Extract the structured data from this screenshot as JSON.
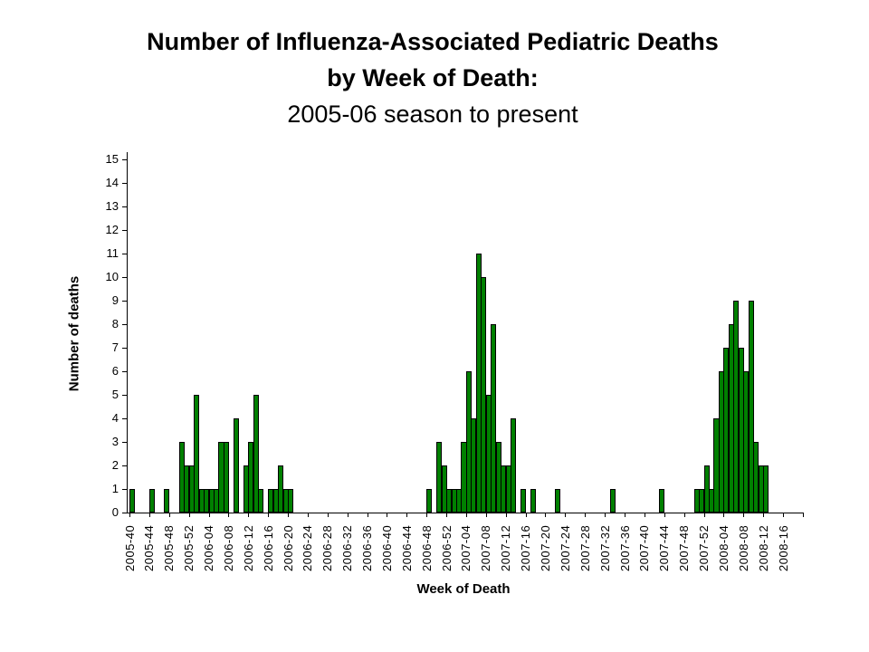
{
  "title": {
    "line1": "Number of Influenza-Associated Pediatric Deaths",
    "line2": "by Week of Death:",
    "line3": "2005-06 season to present"
  },
  "chart_data": {
    "type": "bar",
    "title": "Number of Influenza-Associated Pediatric Deaths by Week of Death: 2005-06 season to present",
    "xlabel": "Week of Death",
    "ylabel": "Number of deaths",
    "ylim": [
      0,
      15
    ],
    "y_ticks": [
      0,
      1,
      2,
      3,
      4,
      5,
      6,
      7,
      8,
      9,
      10,
      11,
      12,
      13,
      14,
      15
    ],
    "x_tick_every": 4,
    "grid": "off",
    "legend": "none",
    "bar_color": "#008000",
    "bar_border_color": "#000000",
    "background_color": "#ffffff",
    "text_color": "#000000",
    "weeks": [
      "2005-40",
      "2005-41",
      "2005-42",
      "2005-43",
      "2005-44",
      "2005-45",
      "2005-46",
      "2005-47",
      "2005-48",
      "2005-49",
      "2005-50",
      "2005-51",
      "2005-52",
      "2006-01",
      "2006-02",
      "2006-03",
      "2006-04",
      "2006-05",
      "2006-06",
      "2006-07",
      "2006-08",
      "2006-09",
      "2006-10",
      "2006-11",
      "2006-12",
      "2006-13",
      "2006-14",
      "2006-15",
      "2006-16",
      "2006-17",
      "2006-18",
      "2006-19",
      "2006-20",
      "2006-21",
      "2006-22",
      "2006-23",
      "2006-24",
      "2006-25",
      "2006-26",
      "2006-27",
      "2006-28",
      "2006-29",
      "2006-30",
      "2006-31",
      "2006-32",
      "2006-33",
      "2006-34",
      "2006-35",
      "2006-36",
      "2006-37",
      "2006-38",
      "2006-39",
      "2006-40",
      "2006-41",
      "2006-42",
      "2006-43",
      "2006-44",
      "2006-45",
      "2006-46",
      "2006-47",
      "2006-48",
      "2006-49",
      "2006-50",
      "2006-51",
      "2006-52",
      "2007-01",
      "2007-02",
      "2007-03",
      "2007-04",
      "2007-05",
      "2007-06",
      "2007-07",
      "2007-08",
      "2007-09",
      "2007-10",
      "2007-11",
      "2007-12",
      "2007-13",
      "2007-14",
      "2007-15",
      "2007-16",
      "2007-17",
      "2007-18",
      "2007-19",
      "2007-20",
      "2007-21",
      "2007-22",
      "2007-23",
      "2007-24",
      "2007-25",
      "2007-26",
      "2007-27",
      "2007-28",
      "2007-29",
      "2007-30",
      "2007-31",
      "2007-32",
      "2007-33",
      "2007-34",
      "2007-35",
      "2007-36",
      "2007-37",
      "2007-38",
      "2007-39",
      "2007-40",
      "2007-41",
      "2007-42",
      "2007-43",
      "2007-44",
      "2007-45",
      "2007-46",
      "2007-47",
      "2007-48",
      "2007-49",
      "2007-50",
      "2007-51",
      "2007-52",
      "2008-01",
      "2008-02",
      "2008-03",
      "2008-04",
      "2008-05",
      "2008-06",
      "2008-07",
      "2008-08",
      "2008-09",
      "2008-10",
      "2008-11",
      "2008-12",
      "2008-13",
      "2008-14",
      "2008-15",
      "2008-16",
      "2008-17",
      "2008-18"
    ],
    "values": [
      1,
      0,
      0,
      0,
      1,
      0,
      0,
      1,
      0,
      0,
      3,
      2,
      2,
      5,
      1,
      1,
      1,
      1,
      3,
      3,
      0,
      4,
      0,
      2,
      3,
      5,
      1,
      0,
      1,
      1,
      2,
      1,
      1,
      0,
      0,
      0,
      0,
      0,
      0,
      0,
      0,
      0,
      0,
      0,
      0,
      0,
      0,
      0,
      0,
      0,
      0,
      0,
      0,
      0,
      0,
      0,
      0,
      0,
      0,
      0,
      1,
      0,
      3,
      2,
      1,
      1,
      1,
      3,
      6,
      4,
      11,
      10,
      5,
      8,
      3,
      2,
      2,
      4,
      0,
      1,
      0,
      1,
      0,
      0,
      0,
      0,
      1,
      0,
      0,
      0,
      0,
      0,
      0,
      0,
      0,
      0,
      0,
      1,
      0,
      0,
      0,
      0,
      0,
      0,
      0,
      0,
      0,
      1,
      0,
      0,
      0,
      0,
      0,
      0,
      1,
      1,
      2,
      1,
      4,
      6,
      7,
      8,
      9,
      7,
      6,
      9,
      3,
      2,
      2,
      0,
      0,
      0,
      0,
      0,
      0
    ]
  }
}
